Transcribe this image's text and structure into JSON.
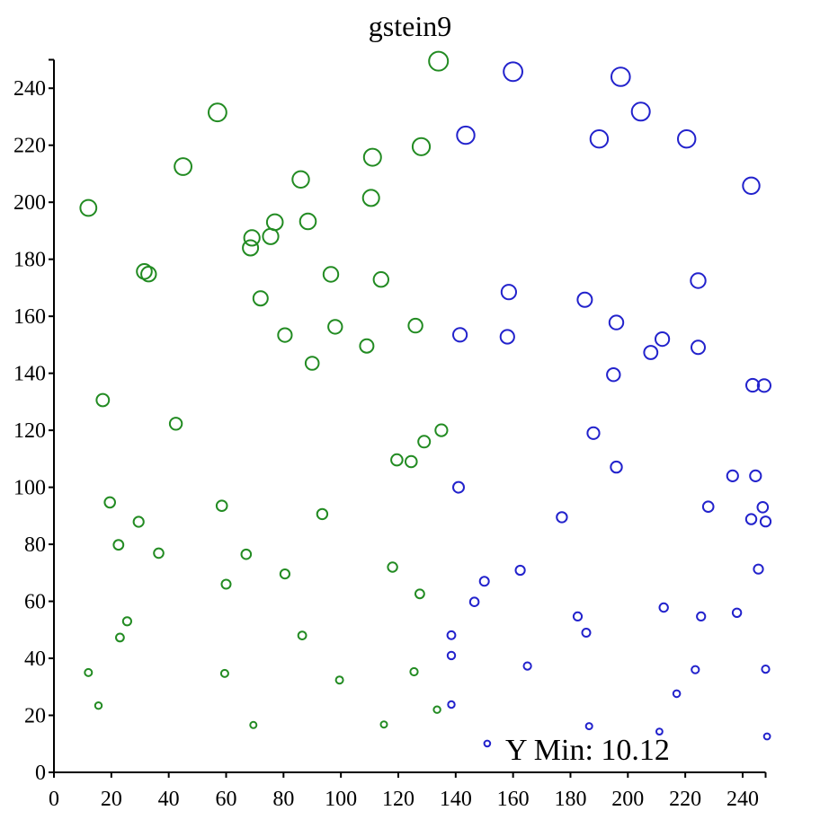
{
  "chart_data": {
    "type": "scatter",
    "title": "gstein9",
    "xlabel": "",
    "ylabel": "",
    "xlim": [
      0,
      248
    ],
    "ylim": [
      0,
      250
    ],
    "xticks": [
      0,
      20,
      40,
      60,
      80,
      100,
      120,
      140,
      160,
      180,
      200,
      220,
      240
    ],
    "yticks": [
      0,
      20,
      40,
      60,
      80,
      100,
      120,
      140,
      160,
      180,
      200,
      220,
      240
    ],
    "grid": false,
    "annotation": "Y Min: 10.12",
    "series": [
      {
        "color": "#228B22",
        "points": [
          [
            134,
            249.5
          ],
          [
            57,
            231.5
          ],
          [
            45,
            212.5
          ],
          [
            111,
            215.8
          ],
          [
            128,
            219.5
          ],
          [
            86,
            208
          ],
          [
            12,
            198
          ],
          [
            110.5,
            201.5
          ],
          [
            77,
            193
          ],
          [
            88.5,
            193.3
          ],
          [
            69,
            187.5
          ],
          [
            75.5,
            188
          ],
          [
            68.5,
            184
          ],
          [
            31.5,
            175.7
          ],
          [
            33,
            174.8
          ],
          [
            96.5,
            174.7
          ],
          [
            114,
            172.9
          ],
          [
            72,
            166.3
          ],
          [
            98,
            156.3
          ],
          [
            126,
            156.7
          ],
          [
            80.5,
            153.4
          ],
          [
            109,
            149.6
          ],
          [
            90,
            143.5
          ],
          [
            17,
            130.6
          ],
          [
            42.5,
            122.3
          ],
          [
            135,
            120
          ],
          [
            129,
            116
          ],
          [
            119.5,
            109.6
          ],
          [
            124.5,
            109
          ],
          [
            19.5,
            94.7
          ],
          [
            58.5,
            93.5
          ],
          [
            93.5,
            90.6
          ],
          [
            29.5,
            87.9
          ],
          [
            22.5,
            79.8
          ],
          [
            36.5,
            76.9
          ],
          [
            67,
            76.5
          ],
          [
            118,
            72
          ],
          [
            80.5,
            69.6
          ],
          [
            60,
            66
          ],
          [
            127.5,
            62.6
          ],
          [
            25.5,
            53
          ],
          [
            86.5,
            48
          ],
          [
            23,
            47.3
          ],
          [
            12,
            35
          ],
          [
            59.5,
            34.7
          ],
          [
            125.5,
            35.3
          ],
          [
            99.5,
            32.4
          ],
          [
            15.5,
            23.4
          ],
          [
            133.5,
            22
          ],
          [
            69.5,
            16.6
          ],
          [
            115,
            16.8
          ]
        ]
      },
      {
        "color": "#2222CC",
        "points": [
          [
            160,
            245.8
          ],
          [
            197.5,
            244
          ],
          [
            204.5,
            231.8
          ],
          [
            143.5,
            223.5
          ],
          [
            190,
            222.2
          ],
          [
            220.5,
            222.2
          ],
          [
            243,
            205.8
          ],
          [
            158.5,
            168.5
          ],
          [
            185,
            165.8
          ],
          [
            224.5,
            172.5
          ],
          [
            141.5,
            153.5
          ],
          [
            158,
            152.8
          ],
          [
            196,
            157.8
          ],
          [
            212,
            152
          ],
          [
            208,
            147.3
          ],
          [
            224.5,
            149.1
          ],
          [
            195,
            139.5
          ],
          [
            243.5,
            135.8
          ],
          [
            247.5,
            135.7
          ],
          [
            188,
            119
          ],
          [
            196,
            107.1
          ],
          [
            141,
            100
          ],
          [
            236.5,
            104
          ],
          [
            244.5,
            104
          ],
          [
            228,
            93.2
          ],
          [
            247,
            93
          ],
          [
            177,
            89.5
          ],
          [
            243,
            88.8
          ],
          [
            248,
            88
          ],
          [
            245.5,
            71.3
          ],
          [
            162.5,
            70.9
          ],
          [
            150,
            67
          ],
          [
            146.5,
            59.8
          ],
          [
            212.5,
            57.8
          ],
          [
            238,
            56
          ],
          [
            182.5,
            54.7
          ],
          [
            225.5,
            54.7
          ],
          [
            185.5,
            49
          ],
          [
            138.5,
            48.1
          ],
          [
            138.5,
            41
          ],
          [
            165,
            37.3
          ],
          [
            223.5,
            36
          ],
          [
            248,
            36.2
          ],
          [
            217,
            27.6
          ],
          [
            138.5,
            23.8
          ],
          [
            186.5,
            16.2
          ],
          [
            211,
            14.3
          ],
          [
            248.5,
            12.6
          ],
          [
            151,
            10.12
          ]
        ]
      }
    ]
  }
}
